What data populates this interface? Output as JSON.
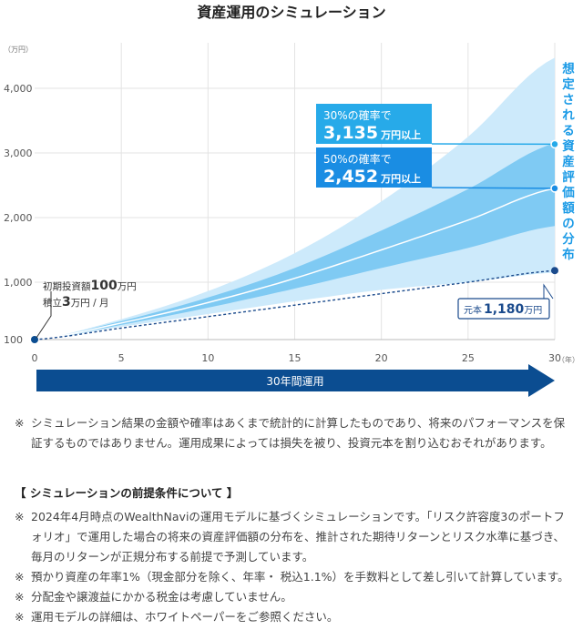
{
  "chart_data": {
    "type": "area",
    "title": "資産運用のシミュレーション",
    "y_unit": "（万円）",
    "x_unit": "（年）",
    "x_ticks": [
      0,
      5,
      10,
      15,
      20,
      25,
      30
    ],
    "y_ticks": [
      100,
      1000,
      2000,
      3000,
      4000
    ],
    "y_tick_labels": [
      "100",
      "1,000",
      "2,000",
      "3,000",
      "4,000"
    ],
    "xlim": [
      0,
      30
    ],
    "ylim": [
      100,
      4600
    ],
    "initial_investment": 100,
    "monthly_contribution": 3,
    "series": [
      {
        "name": "outer_band_upper",
        "values": [
          [
            0,
            100
          ],
          [
            5,
            420
          ],
          [
            10,
            860
          ],
          [
            15,
            1450
          ],
          [
            20,
            2250
          ],
          [
            25,
            3250
          ],
          [
            30,
            4480
          ]
        ]
      },
      {
        "name": "inner_band_upper",
        "values": [
          [
            0,
            100
          ],
          [
            5,
            390
          ],
          [
            10,
            760
          ],
          [
            15,
            1220
          ],
          [
            20,
            1800
          ],
          [
            25,
            2440
          ],
          [
            30,
            3150
          ]
        ]
      },
      {
        "name": "median",
        "values": [
          [
            0,
            100
          ],
          [
            5,
            360
          ],
          [
            10,
            680
          ],
          [
            15,
            1060
          ],
          [
            20,
            1500
          ],
          [
            25,
            1960
          ],
          [
            30,
            2452
          ]
        ]
      },
      {
        "name": "inner_band_lower",
        "values": [
          [
            0,
            100
          ],
          [
            5,
            330
          ],
          [
            10,
            600
          ],
          [
            15,
            900
          ],
          [
            20,
            1220
          ],
          [
            25,
            1530
          ],
          [
            30,
            1870
          ]
        ]
      },
      {
        "name": "outer_band_lower",
        "values": [
          [
            0,
            100
          ],
          [
            5,
            300
          ],
          [
            10,
            500
          ],
          [
            15,
            700
          ],
          [
            20,
            880
          ],
          [
            25,
            1000
          ],
          [
            30,
            1150
          ]
        ]
      },
      {
        "name": "principal",
        "values": [
          [
            0,
            100
          ],
          [
            5,
            280
          ],
          [
            10,
            460
          ],
          [
            15,
            640
          ],
          [
            20,
            820
          ],
          [
            25,
            1000
          ],
          [
            30,
            1180
          ]
        ]
      }
    ],
    "markers": [
      {
        "name": "30%",
        "x": 30,
        "y": 3135
      },
      {
        "name": "50%",
        "x": 30,
        "y": 2452
      },
      {
        "name": "principal",
        "x": 30,
        "y": 1180
      },
      {
        "name": "start",
        "x": 0,
        "y": 100
      }
    ],
    "annotations": {
      "p30_line1_prefix": "30",
      "p30_line1_suffix": "%の確率で",
      "p30_value": "3,135",
      "p30_unit": "万円以上",
      "p50_line1_prefix": "50",
      "p50_line1_suffix": "%の確率で",
      "p50_value": "2,452",
      "p50_unit": "万円以上",
      "initial_prefix": "初期投資額",
      "initial_value": "100",
      "initial_unit": "万円",
      "monthly_prefix": "積立",
      "monthly_value": "3",
      "monthly_unit": "万円 / 月",
      "principal_prefix": "元本",
      "principal_value": "1,180",
      "principal_unit": "万円",
      "vertical_label": "想定される資産評価額の分布",
      "period_label": "30年間運用"
    },
    "colors": {
      "outer": "#cdeafb",
      "inner": "#7fcaf3",
      "median": "#ffffff",
      "principal": "#1a4a8c",
      "navy": "#0b4d91",
      "box30": "#27aae9",
      "box50": "#1a8de3",
      "grid": "#e3e3e3",
      "title": "#222222"
    }
  },
  "notes": {
    "disclaimer_mark": "※",
    "disclaimer": "シミュレーション結果の金額や確率はあくまで統計的に計算したものであり、将来のパフォーマンスを保証するものではありません。運用成果によっては損失を被り、投資元本を割り込むおそれがあります。",
    "heading": "【 シミュレーションの前提条件について 】",
    "items": [
      {
        "mark": "※",
        "text": "2024年4月時点のWealthNaviの運用モデルに基づくシミュレーションです。「リスク許容度3のポートフォリオ」で運用した場合の将来の資産評価額の分布を、推計された期待リターンとリスク水準に基づき、毎月のリターンが正規分布する前提で予測しています。"
      },
      {
        "mark": "※",
        "text": "預かり資産の年率1%（現金部分を除く、年率・ 税込1.1%）を手数料として差し引いて計算しています。"
      },
      {
        "mark": "※",
        "text": "分配金や譲渡益にかかる税金は考慮していません。"
      },
      {
        "mark": "※",
        "text": "運用モデルの詳細は、ホワイトペーパーをご参照ください。"
      }
    ]
  }
}
